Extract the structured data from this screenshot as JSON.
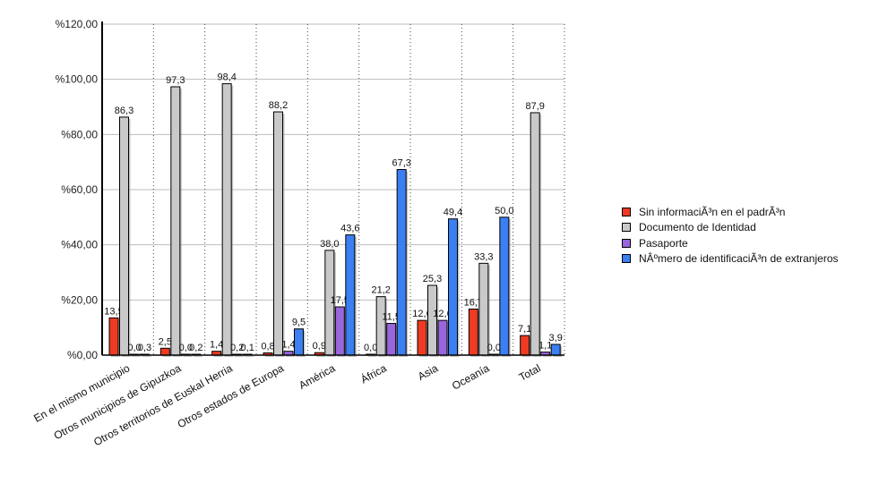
{
  "chart_data": {
    "type": "bar",
    "categories": [
      "En el mismo municipio",
      "Otros municipios de Gipuzkoa",
      "Otros territorios de Euskal Herria",
      "Otros estados de Europa",
      "América",
      "África",
      "Asia",
      "Oceanía",
      "Total"
    ],
    "series": [
      {
        "name": "Sin informaciÃ³n en el padrÃ³n",
        "color": "#ee3b22",
        "values": [
          13.5,
          2.5,
          1.4,
          0.8,
          0.9,
          0.0,
          12.6,
          16.7,
          7.1
        ],
        "labels": [
          "13,5",
          "2,5",
          "1,4",
          "0,8",
          "0,9",
          "0,0",
          "12,6",
          "16,7",
          "7,1"
        ]
      },
      {
        "name": "Documento de Identidad",
        "color": "#c9c9c9",
        "values": [
          86.3,
          97.3,
          98.4,
          88.2,
          38.0,
          21.2,
          25.3,
          33.3,
          87.9
        ],
        "labels": [
          "86,3",
          "97,3",
          "98,4",
          "88,2",
          "38,0",
          "21,2",
          "25,3",
          "33,3",
          "87,9"
        ]
      },
      {
        "name": "Pasaporte",
        "color": "#9966dd",
        "values": [
          0.0,
          0.0,
          0.2,
          1.4,
          17.5,
          11.5,
          12.6,
          0.0,
          1.1
        ],
        "labels": [
          "0,0",
          "0,0",
          "0,2",
          "1,4",
          "17,5",
          "11,5",
          "12,6",
          "0,0",
          "1,1"
        ]
      },
      {
        "name": "NÂºmero de identificaciÃ³n de extranjeros",
        "color": "#3b7ff2",
        "values": [
          0.3,
          0.2,
          0.1,
          9.5,
          43.6,
          67.3,
          49.4,
          50.0,
          3.9
        ],
        "labels": [
          "0,3",
          "0,2",
          "0,1",
          "9,5",
          "43,6",
          "67,3",
          "49,4",
          "50,0",
          "3,9"
        ]
      }
    ],
    "y_ticks": [
      "%0,00",
      "%20,00",
      "%40,00",
      "%60,00",
      "%80,00",
      "%100,00",
      "%120,00"
    ],
    "ylim": [
      0,
      120
    ],
    "grid": true,
    "legend_position": "right"
  }
}
